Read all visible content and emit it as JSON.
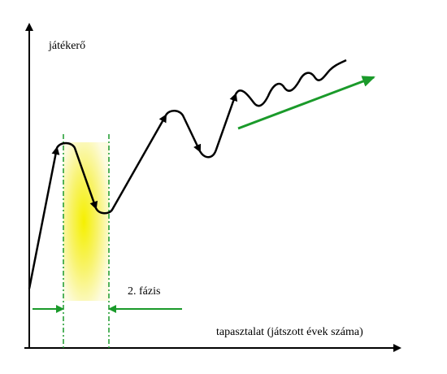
{
  "y_axis_label": "játékerő",
  "x_axis_label": "tapasztalat (játszott évek száma)",
  "phase_label": "2. fázis"
}
